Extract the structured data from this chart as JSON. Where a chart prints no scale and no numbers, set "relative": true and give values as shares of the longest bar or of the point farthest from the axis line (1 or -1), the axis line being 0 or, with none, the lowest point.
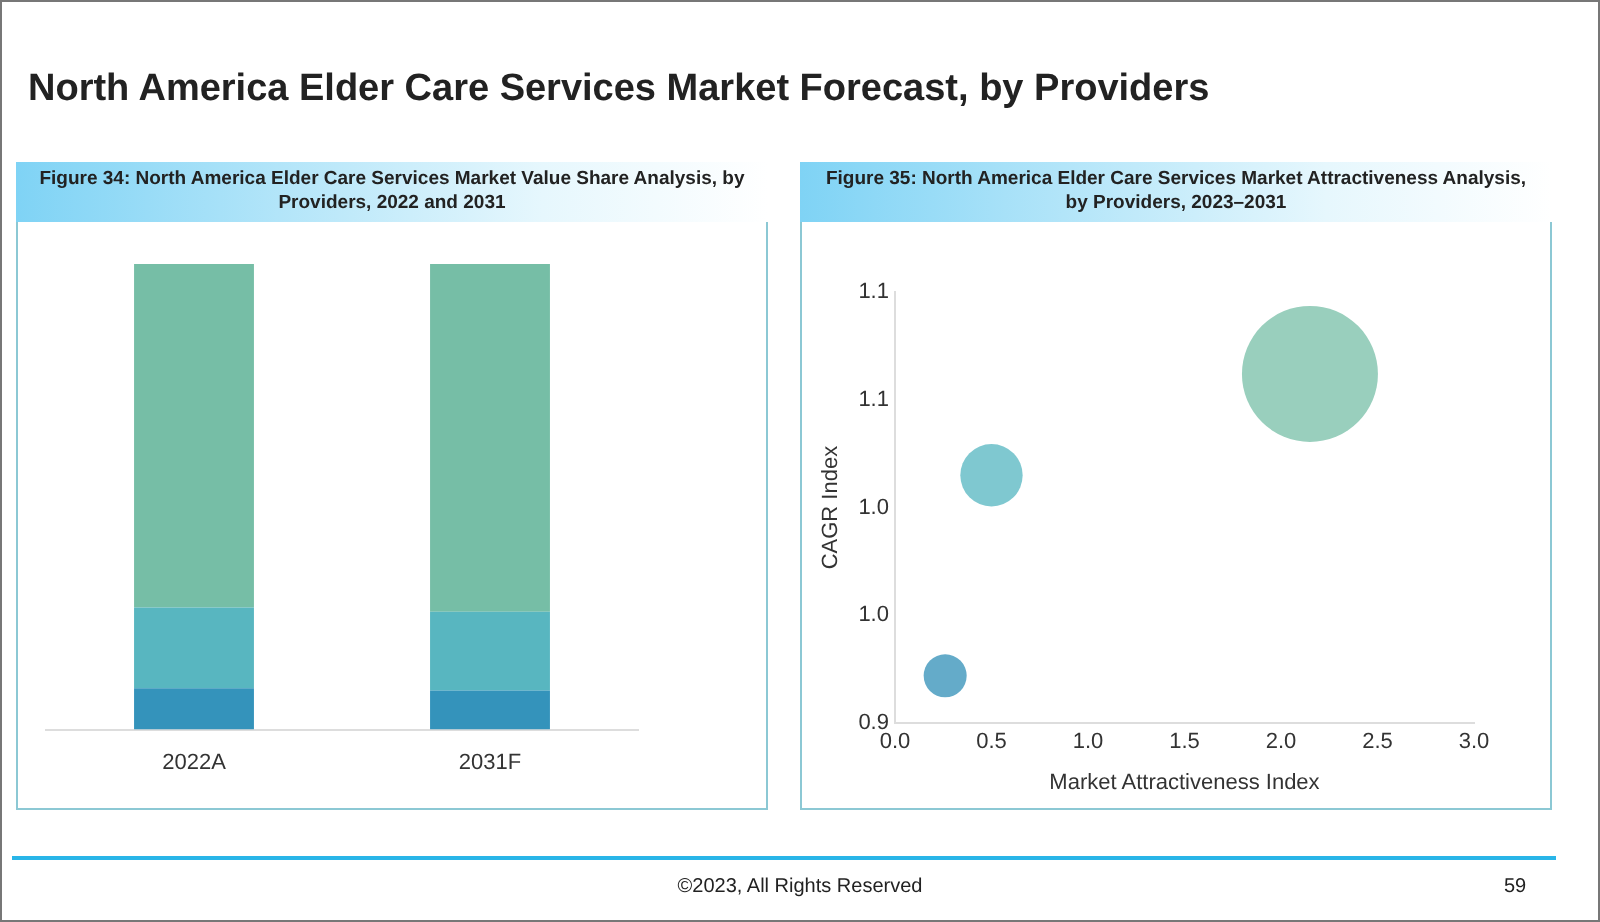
{
  "chart_data": [
    {
      "type": "bar",
      "title": "Figure 34: North America Elder Care Services Market Value Share Analysis, by Providers, 2022 and 2031",
      "annotations": [
        "North America Elder Care Services Market Forecast, by Providers",
        "©2023, All Rights Reserved",
        "59"
      ],
      "categories": [
        "2022A",
        "2031F"
      ],
      "stacked": true,
      "relative": true,
      "grid": false,
      "legend": false,
      "series": [
        {
          "color": "#3493bb",
          "values": [
            0.089,
            0.084
          ]
        },
        {
          "color": "#58b6c0",
          "values": [
            0.173,
            0.169
          ]
        },
        {
          "color": "#76bea6",
          "values": [
            0.738,
            0.747
          ]
        }
      ]
    },
    {
      "type": "bubble",
      "title": "Figure 35: North America Elder Care Services Market Attractiveness Analysis, by Providers, 2023–2031",
      "xlabel": "Market Attractiveness Index",
      "ylabel": "CAGR Index",
      "grid": false,
      "legend": false,
      "xlim": [
        0,
        3
      ],
      "xticks": [
        {
          "value": 0,
          "label": "0.0"
        },
        {
          "value": 0.5,
          "label": "0.5"
        },
        {
          "value": 1,
          "label": "1.0"
        },
        {
          "value": 1.5,
          "label": "1.5"
        },
        {
          "value": 2,
          "label": "2.0"
        },
        {
          "value": 2.5,
          "label": "2.5"
        },
        {
          "value": 3,
          "label": "3.0"
        }
      ],
      "ylim": [
        0.9,
        1.1
      ],
      "yticks": [
        {
          "value": 0.9,
          "label": "0.9"
        },
        {
          "value": 0.95,
          "label": "1.0"
        },
        {
          "value": 1.0,
          "label": "1.0"
        },
        {
          "value": 1.05,
          "label": "1.1"
        },
        {
          "value": 1.1,
          "label": "1.1"
        }
      ],
      "x": [
        0.26,
        0.5,
        2.15
      ],
      "values": [
        0.922,
        1.015,
        1.062
      ],
      "sizes": [
        0.1,
        0.21,
        1
      ],
      "colors": [
        "#64abc9",
        "#7fc8d0",
        "#99cfbd"
      ]
    }
  ]
}
